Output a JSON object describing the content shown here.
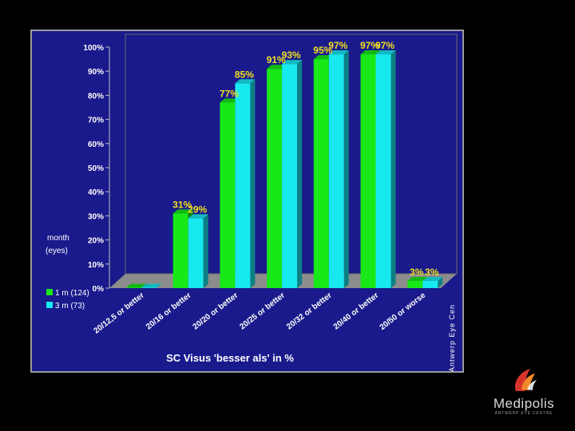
{
  "chart_data": {
    "type": "bar",
    "categories": [
      "20/12,5 or better",
      "20/16 or better",
      "20/20 or better",
      "20/25 or better",
      "20/32 or better",
      "20/40 or better",
      "20/50 or worse"
    ],
    "series": [
      {
        "name": "1 m (124)",
        "color": "#18e818",
        "values": [
          0,
          31,
          77,
          91,
          95,
          97,
          3
        ],
        "labels": [
          "",
          "31%",
          "77%",
          "91%",
          "95%",
          "97%",
          "3%"
        ]
      },
      {
        "name": "3 m (73)",
        "color": "#18e8f0",
        "values": [
          0,
          29,
          85,
          93,
          97,
          97,
          3
        ],
        "labels": [
          "",
          "29%",
          "85%",
          "93%",
          "97%",
          "97%",
          "3%"
        ]
      }
    ],
    "yticks": [
      "0%",
      "10%",
      "20%",
      "30%",
      "40%",
      "50%",
      "60%",
      "70%",
      "80%",
      "90%",
      "100%"
    ],
    "ylim": [
      0,
      100
    ],
    "xlabel": "SC Visus  'besser als'  in %",
    "legend_title": [
      "month",
      "(eyes)"
    ],
    "legend_position": "left",
    "side_label": "Antwerp Eye Cen",
    "grid": false,
    "colors": {
      "background": "#1a1a8c",
      "data_label": "#f0e020",
      "text": "#ffffff"
    }
  },
  "logo": {
    "name": "Medipolis",
    "tagline": "ANTWERP EYE CENTRE"
  }
}
